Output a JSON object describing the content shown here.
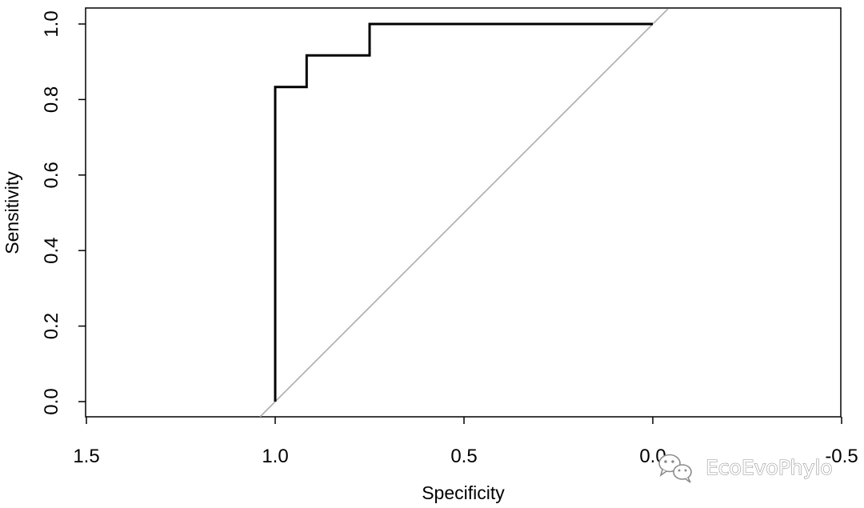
{
  "chart_data": {
    "type": "line",
    "title": "",
    "xlabel": "Specificity",
    "ylabel": "Sensitivity",
    "xlim": [
      1.5,
      -0.5
    ],
    "ylim": [
      0.0,
      1.0
    ],
    "x_reversed": true,
    "x_ticks": [
      "1.5",
      "1.0",
      "0.5",
      "0.0",
      "-0.5"
    ],
    "y_ticks": [
      "0.0",
      "0.2",
      "0.4",
      "0.6",
      "0.8",
      "1.0"
    ],
    "grid": false,
    "legend": "none",
    "series": [
      {
        "role": "roc-curve",
        "color": "#000000",
        "x": [
          1.0,
          1.0,
          0.9167,
          0.9167,
          0.75,
          0.75,
          0.0
        ],
        "y": [
          0.0,
          0.8333,
          0.8333,
          0.9167,
          0.9167,
          1.0,
          1.0
        ]
      },
      {
        "role": "diagonal-reference",
        "color": "#b3b3b3",
        "x": [
          1.04,
          -0.04
        ],
        "y": [
          -0.04,
          1.04
        ]
      }
    ]
  },
  "watermark": {
    "text": "EcoEvoPhylo",
    "icon": "wechat-icon"
  }
}
